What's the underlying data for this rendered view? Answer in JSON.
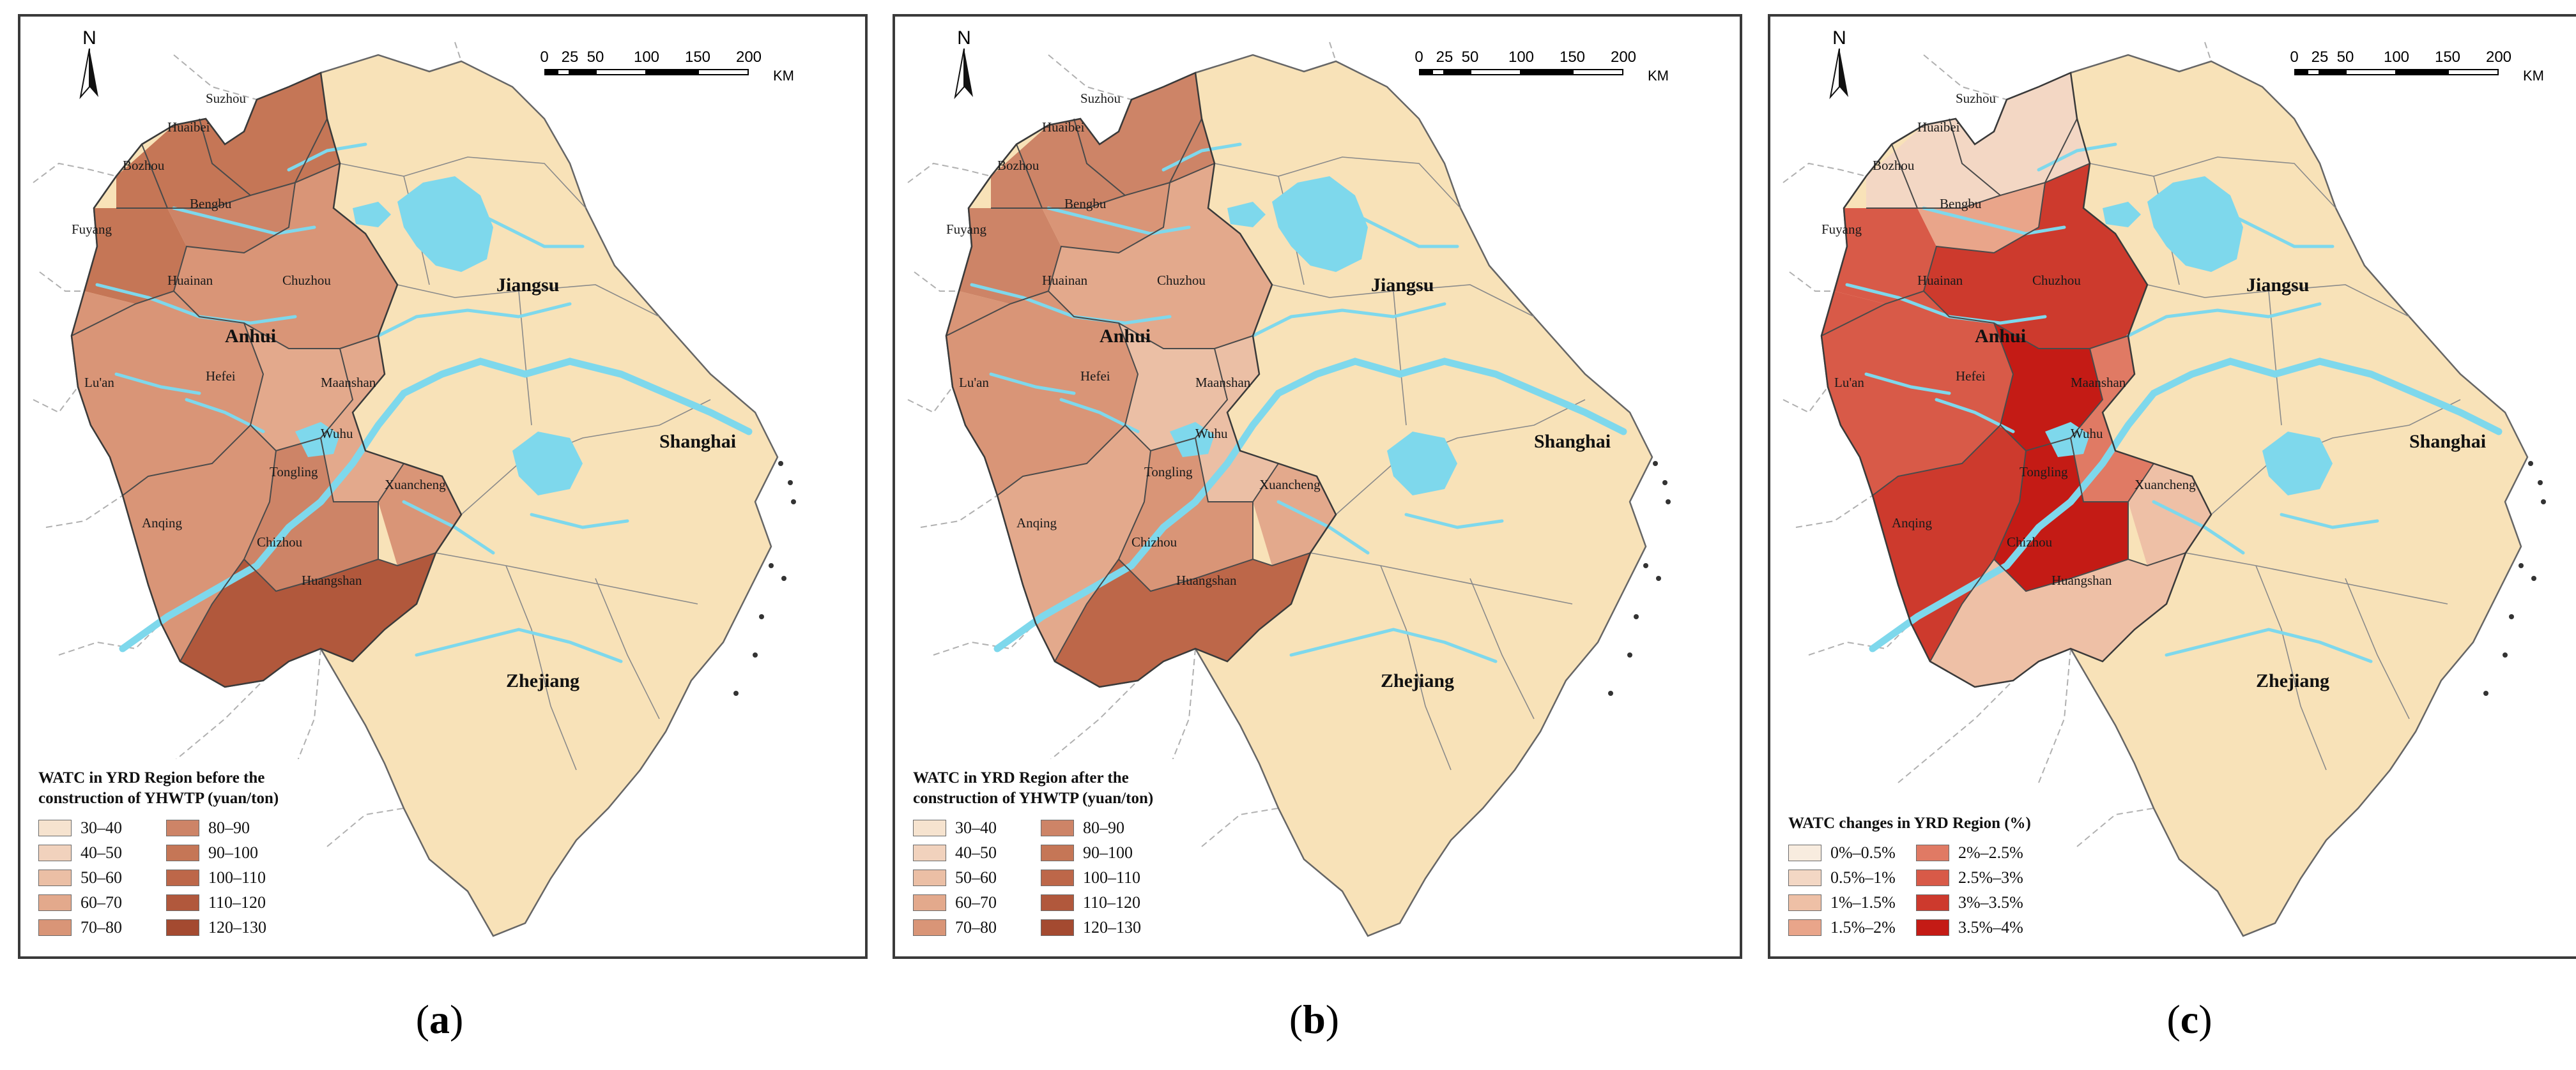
{
  "panels": [
    {
      "id": "a",
      "legend_title_lines": [
        "WATC in YRD Region before the",
        "construction of YHWTP (yuan/ton)"
      ],
      "legend_items": [
        "30–40",
        "40–50",
        "50–60",
        "60–70",
        "70–80",
        "80–90",
        "90–100",
        "100–110",
        "110–120",
        "120–130"
      ],
      "legend_colors": [
        "#f6e3cf",
        "#f1d2bd",
        "#ebbfa5",
        "#e3a98c",
        "#d99577",
        "#cd8467",
        "#c57656",
        "#bd6749",
        "#b1583c",
        "#a44a30"
      ],
      "caption": "a"
    },
    {
      "id": "b",
      "legend_title_lines": [
        "WATC in YRD Region after  the",
        "construction of YHWTP (yuan/ton)"
      ],
      "legend_items": [
        "30–40",
        "40–50",
        "50–60",
        "60–70",
        "70–80",
        "80–90",
        "90–100",
        "100–110",
        "110–120",
        "120–130"
      ],
      "legend_colors": [
        "#f6e3cf",
        "#f1d2bd",
        "#ebbfa5",
        "#e3a98c",
        "#d99577",
        "#cd8467",
        "#c57656",
        "#bd6749",
        "#b1583c",
        "#a44a30"
      ],
      "caption": "b"
    },
    {
      "id": "c",
      "legend_title_lines": [
        "WATC changes in YRD Region (%)"
      ],
      "legend_items": [
        "0%–0.5%",
        "0.5%–1%",
        "1%–1.5%",
        "1.5%–2%",
        "2%–2.5%",
        "2.5%–3%",
        "3%–3.5%",
        "3.5%–4%"
      ],
      "legend_colors": [
        "#f8ecdf",
        "#f3d7c4",
        "#eec0a6",
        "#e9a58a",
        "#e07a64",
        "#d85a48",
        "#cd3a2d",
        "#c41b15"
      ],
      "caption": "c"
    }
  ],
  "north_label": "N",
  "scale_ticks": [
    "0",
    "25",
    "50",
    "100",
    "150",
    "200"
  ],
  "scale_unit": "KM",
  "provinces": [
    "Jiangsu",
    "Anhui",
    "Shanghai",
    "Zhejiang"
  ],
  "cities": [
    "Suzhou",
    "Huaibei",
    "Bozhou",
    "Bengbu",
    "Fuyang",
    "Huainan",
    "Chuzhou",
    "Lu'an",
    "Hefei",
    "Maanshan",
    "Wuhu",
    "Tongling",
    "Xuancheng",
    "Anqing",
    "Chizhou",
    "Huangshan"
  ],
  "colors": {
    "land": "#f8e2b8",
    "water": "#7ed8ec",
    "border": "#8a8a8a",
    "outside_border": "#b0b0b0"
  }
}
